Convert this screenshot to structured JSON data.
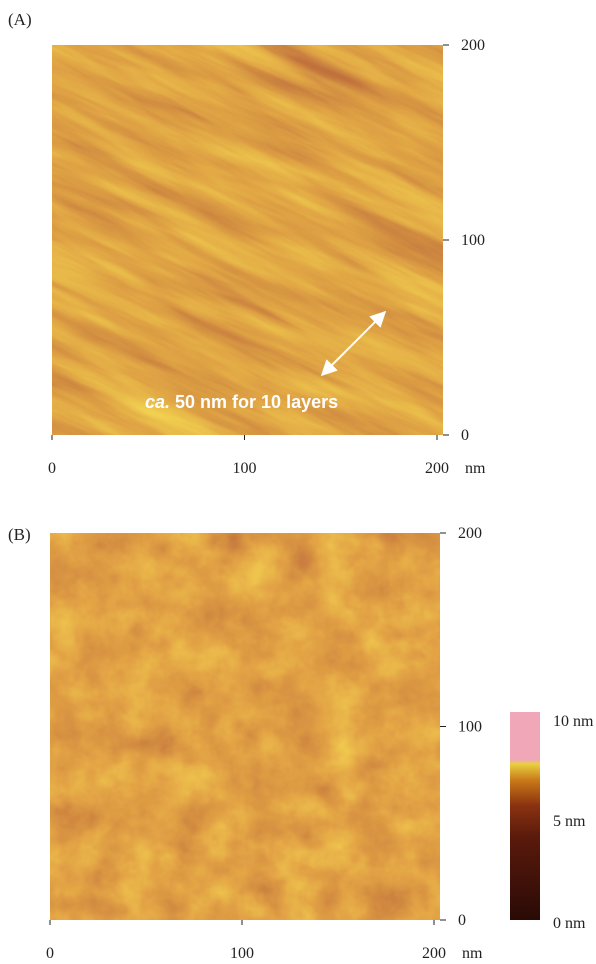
{
  "panels": [
    {
      "label": "(A)",
      "x_ticks": [
        0,
        100,
        200
      ],
      "y_ticks": [
        0,
        100,
        200
      ],
      "x_unit": "nm",
      "annotation": {
        "italic": "ca.",
        "text": "50 nm for 10 layers"
      }
    },
    {
      "label": "(B)",
      "x_ticks": [
        0,
        100,
        200
      ],
      "y_ticks": [
        0,
        100,
        200
      ],
      "x_unit": "nm"
    }
  ],
  "colorbar": {
    "labels": [
      "10 nm",
      "5 nm",
      "0 nm"
    ]
  }
}
